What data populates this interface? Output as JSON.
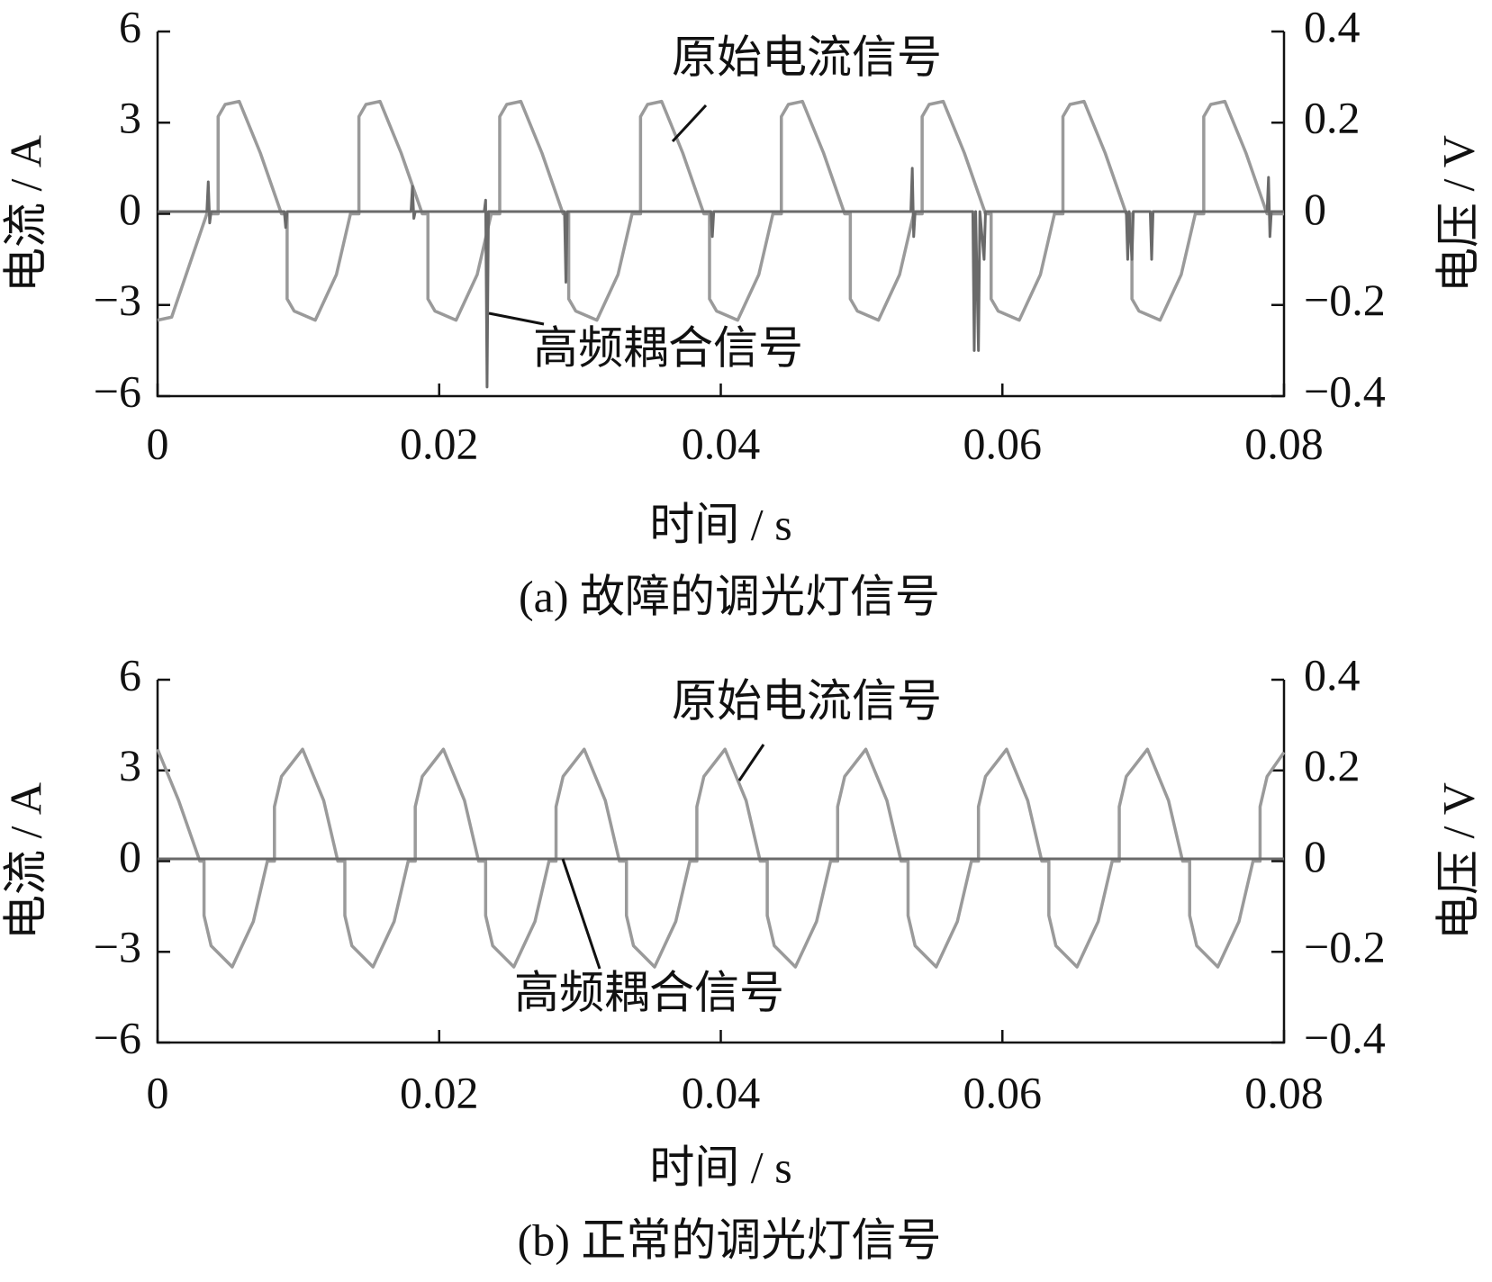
{
  "chart_data": [
    {
      "type": "line",
      "caption": "(a)  故障的调光灯信号",
      "xlabel": "时间 / s",
      "ylabel": "电流 / A",
      "y2label": "电压 / V",
      "xlim": [
        0,
        0.08
      ],
      "xticks": [
        0,
        0.02,
        0.04,
        0.06,
        0.08
      ],
      "ylim": [
        -6,
        6
      ],
      "yticks": [
        {
          "value": -6,
          "label": "−6"
        },
        {
          "value": -3,
          "label": "−3"
        },
        0,
        3,
        6
      ],
      "y2lim": [
        -0.4,
        0.4
      ],
      "y2ticks": [
        {
          "value": -0.4,
          "label": "−0.4"
        },
        {
          "value": -0.2,
          "label": "−0.2"
        },
        0,
        0.2,
        0.4
      ],
      "series": [
        {
          "name": "原始电流信号",
          "color": "#9a9a9a",
          "x": [
            0,
            0.001,
            0.0035,
            0.0043,
            0.0043,
            0.0043,
            0.0048,
            0.0058,
            0.0073,
            0.0088,
            0.0092,
            0.0092,
            0.0097,
            0.0112,
            0.0127,
            0.0137,
            0.0143,
            0.0143,
            0.0148,
            0.0158,
            0.0173,
            0.0188,
            0.0192,
            0.0192,
            0.0197,
            0.0212,
            0.0227,
            0.0237,
            0.0243,
            0.0243,
            0.0248,
            0.0258,
            0.0273,
            0.0288,
            0.0292,
            0.0292,
            0.0297,
            0.0312,
            0.0327,
            0.0337,
            0.0343,
            0.0343,
            0.0348,
            0.0358,
            0.0373,
            0.0388,
            0.0392,
            0.0392,
            0.0397,
            0.0412,
            0.0427,
            0.0437,
            0.0443,
            0.0443,
            0.0448,
            0.0458,
            0.0473,
            0.0488,
            0.0492,
            0.0492,
            0.0497,
            0.0512,
            0.0527,
            0.0537,
            0.0543,
            0.0543,
            0.0548,
            0.0558,
            0.0573,
            0.0588,
            0.0592,
            0.0592,
            0.0597,
            0.0612,
            0.0627,
            0.0637,
            0.0643,
            0.0643,
            0.0648,
            0.0658,
            0.0673,
            0.0688,
            0.0692,
            0.0692,
            0.0697,
            0.0712,
            0.0727,
            0.0737,
            0.0743,
            0.0743,
            0.0748,
            0.0758,
            0.0773,
            0.0788,
            0.08
          ],
          "values": [
            -3.5,
            -3.4,
            0,
            0,
            0,
            3.2,
            3.6,
            3.7,
            2.0,
            0,
            0,
            -2.8,
            -3.2,
            -3.5,
            -2.0,
            0,
            0,
            3.2,
            3.6,
            3.7,
            2.0,
            0,
            0,
            -2.8,
            -3.2,
            -3.5,
            -2.0,
            0,
            0,
            3.2,
            3.6,
            3.7,
            2.0,
            0,
            0,
            -2.8,
            -3.2,
            -3.5,
            -2.0,
            0,
            0,
            3.2,
            3.6,
            3.7,
            2.0,
            0,
            0,
            -2.8,
            -3.2,
            -3.5,
            -2.0,
            0,
            0,
            3.2,
            3.6,
            3.7,
            2.0,
            0,
            0,
            -2.8,
            -3.2,
            -3.5,
            -2.0,
            0,
            0,
            3.2,
            3.6,
            3.7,
            2.0,
            0,
            0,
            -2.8,
            -3.2,
            -3.5,
            -2.0,
            0,
            0,
            3.2,
            3.6,
            3.7,
            2.0,
            0,
            0,
            -2.8,
            -3.2,
            -3.5,
            -2.0,
            0,
            0,
            3.2,
            3.6,
            3.7,
            2.0,
            0,
            0
          ]
        },
        {
          "name": "高频耦合信号",
          "color": "#6a6a6a",
          "axis": "y2",
          "x": [
            0,
            0.0035,
            0.0036,
            0.0037,
            0.0038,
            0.009,
            0.0091,
            0.0092,
            0.018,
            0.0181,
            0.0182,
            0.0183,
            0.0232,
            0.0233,
            0.0234,
            0.0235,
            0.0289,
            0.029,
            0.0291,
            0.0393,
            0.0394,
            0.0395,
            0.0535,
            0.0536,
            0.0537,
            0.0538,
            0.0579,
            0.058,
            0.0581,
            0.0583,
            0.0584,
            0.0587,
            0.0588,
            0.0688,
            0.0689,
            0.069,
            0.0692,
            0.0693,
            0.0705,
            0.0706,
            0.0707,
            0.0788,
            0.0789,
            0.079,
            0.0791,
            0.08
          ],
          "values": [
            0.005,
            0.005,
            0.07,
            -0.02,
            0.005,
            0.005,
            -0.03,
            0.005,
            0.005,
            0.06,
            -0.01,
            0.005,
            0.005,
            0.03,
            -0.38,
            0.005,
            0.005,
            -0.15,
            0.005,
            0.005,
            -0.05,
            0.005,
            0.005,
            0.1,
            -0.05,
            0.005,
            0.005,
            -0.3,
            0.005,
            -0.3,
            0.005,
            -0.1,
            0.005,
            0.005,
            -0.1,
            0.005,
            -0.1,
            0.005,
            0.005,
            -0.1,
            0.005,
            0.005,
            0.08,
            -0.05,
            0.005,
            0.005
          ]
        }
      ]
    },
    {
      "type": "line",
      "caption": "(b)  正常的调光灯信号",
      "xlabel": "时间 / s",
      "ylabel": "电流 / A",
      "y2label": "电压 / V",
      "xlim": [
        0,
        0.08
      ],
      "xticks": [
        0,
        0.02,
        0.04,
        0.06,
        0.08
      ],
      "ylim": [
        -6,
        6
      ],
      "yticks": [
        {
          "value": -6,
          "label": "−6"
        },
        {
          "value": -3,
          "label": "−3"
        },
        0,
        3,
        6
      ],
      "y2lim": [
        -0.4,
        0.4
      ],
      "y2ticks": [
        {
          "value": -0.4,
          "label": "−0.4"
        },
        {
          "value": -0.2,
          "label": "−0.2"
        },
        0,
        0.2,
        0.4
      ],
      "series": [
        {
          "name": "原始电流信号",
          "color": "#9a9a9a",
          "x": [
            0,
            0.0015,
            0.003,
            0.0033,
            0.0033,
            0.0038,
            0.0053,
            0.0068,
            0.0078,
            0.0083,
            0.0083,
            0.0088,
            0.0103,
            0.0118,
            0.0128,
            0.0133,
            0.0133,
            0.0138,
            0.0153,
            0.0168,
            0.0178,
            0.0183,
            0.0183,
            0.0188,
            0.0203,
            0.0218,
            0.0228,
            0.0233,
            0.0233,
            0.0238,
            0.0253,
            0.0268,
            0.0278,
            0.0283,
            0.0283,
            0.0288,
            0.0303,
            0.0318,
            0.0328,
            0.0333,
            0.0333,
            0.0338,
            0.0353,
            0.0368,
            0.0378,
            0.0383,
            0.0383,
            0.0388,
            0.0403,
            0.0418,
            0.0428,
            0.0433,
            0.0433,
            0.0438,
            0.0453,
            0.0468,
            0.0478,
            0.0483,
            0.0483,
            0.0488,
            0.0503,
            0.0518,
            0.0528,
            0.0533,
            0.0533,
            0.0538,
            0.0553,
            0.0568,
            0.0578,
            0.0583,
            0.0583,
            0.0588,
            0.0603,
            0.0618,
            0.0628,
            0.0633,
            0.0633,
            0.0638,
            0.0653,
            0.0668,
            0.0678,
            0.0683,
            0.0683,
            0.0688,
            0.0703,
            0.0718,
            0.0728,
            0.0733,
            0.0733,
            0.0738,
            0.0753,
            0.0768,
            0.0778,
            0.0783,
            0.0783,
            0.0788,
            0.08
          ],
          "values": [
            3.7,
            2.0,
            0,
            0,
            -1.8,
            -2.8,
            -3.5,
            -2.0,
            0,
            0,
            1.8,
            2.8,
            3.7,
            2.0,
            0,
            0,
            -1.8,
            -2.8,
            -3.5,
            -2.0,
            0,
            0,
            1.8,
            2.8,
            3.7,
            2.0,
            0,
            0,
            -1.8,
            -2.8,
            -3.5,
            -2.0,
            0,
            0,
            1.8,
            2.8,
            3.7,
            2.0,
            0,
            0,
            -1.8,
            -2.8,
            -3.5,
            -2.0,
            0,
            0,
            1.8,
            2.8,
            3.7,
            2.0,
            0,
            0,
            -1.8,
            -2.8,
            -3.5,
            -2.0,
            0,
            0,
            1.8,
            2.8,
            3.7,
            2.0,
            0,
            0,
            -1.8,
            -2.8,
            -3.5,
            -2.0,
            0,
            0,
            1.8,
            2.8,
            3.7,
            2.0,
            0,
            0,
            -1.8,
            -2.8,
            -3.5,
            -2.0,
            0,
            0,
            1.8,
            2.8,
            3.7,
            2.0,
            0,
            0,
            -1.8,
            -2.8,
            -3.5,
            -2.0,
            0,
            0,
            1.8,
            2.8,
            3.6
          ]
        },
        {
          "name": "高频耦合信号",
          "color": "#6a6a6a",
          "axis": "y2",
          "x": [
            0,
            0.08
          ],
          "values": [
            0.005,
            0.005
          ]
        }
      ]
    }
  ]
}
